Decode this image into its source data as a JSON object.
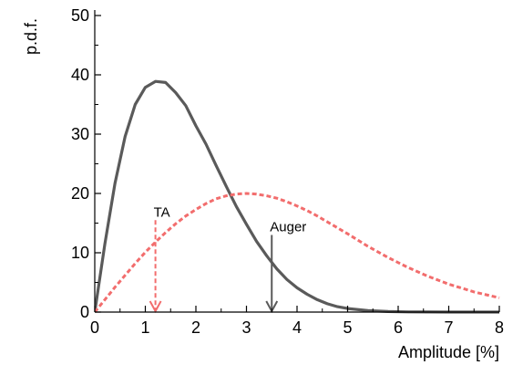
{
  "chart_data": {
    "type": "line",
    "xlabel": "Amplitude [%]",
    "ylabel": "p.d.f.",
    "xlim": [
      0,
      8
    ],
    "ylim": [
      0,
      50
    ],
    "x_ticks": [
      "0",
      "1",
      "2",
      "3",
      "4",
      "5",
      "6",
      "7",
      "8"
    ],
    "y_ticks": [
      "0",
      "10",
      "20",
      "30",
      "40",
      "50"
    ],
    "grid": false,
    "legend": false,
    "series": [
      {
        "color": "#5a5a5a",
        "style": "solid",
        "x": [
          0,
          0.2,
          0.4,
          0.6,
          0.8,
          1.0,
          1.2,
          1.4,
          1.6,
          1.8,
          2.0,
          2.2,
          2.4,
          2.6,
          2.8,
          3.0,
          3.2,
          3.4,
          3.6,
          3.8,
          4.0,
          4.2,
          4.4,
          4.6,
          4.8,
          5.0,
          5.4,
          5.8,
          6.2,
          6.6,
          7.0,
          7.5,
          8.0
        ],
        "y": [
          0,
          11.5,
          21.7,
          29.6,
          35.0,
          37.9,
          38.9,
          38.7,
          37.0,
          34.8,
          31.4,
          28.3,
          24.7,
          21.2,
          17.8,
          14.8,
          11.9,
          9.5,
          7.3,
          5.5,
          4.1,
          3.0,
          2.1,
          1.4,
          0.9,
          0.6,
          0.25,
          0.1,
          0.03,
          0.01,
          0.0,
          0.0,
          0.0
        ]
      },
      {
        "color": "#f26d6d",
        "style": "dashed",
        "x": [
          0,
          0.2,
          0.4,
          0.6,
          0.8,
          1.0,
          1.2,
          1.4,
          1.6,
          1.8,
          2.0,
          2.2,
          2.4,
          2.6,
          2.8,
          3.0,
          3.2,
          3.4,
          3.6,
          3.8,
          4.0,
          4.2,
          4.4,
          4.6,
          4.8,
          5.0,
          5.4,
          5.8,
          6.2,
          6.6,
          7.0,
          7.5,
          8.0
        ],
        "y": [
          0,
          2.1,
          4.2,
          6.2,
          8.2,
          10.1,
          11.8,
          13.4,
          14.9,
          16.2,
          17.3,
          18.3,
          19.1,
          19.6,
          19.9,
          20.0,
          19.9,
          19.6,
          19.2,
          18.6,
          17.9,
          17.1,
          16.2,
          15.2,
          14.2,
          13.2,
          11.1,
          9.2,
          7.5,
          6.0,
          4.7,
          3.4,
          2.4
        ]
      }
    ],
    "annotations": [
      {
        "label": "TA",
        "x": 1.2,
        "y_start": 15.5,
        "y_end": 0,
        "color": "#f26d6d",
        "style": "dashed"
      },
      {
        "label": "Auger",
        "x": 3.5,
        "y_start": 13,
        "y_end": 0,
        "color": "#5a5a5a",
        "style": "solid"
      }
    ]
  }
}
